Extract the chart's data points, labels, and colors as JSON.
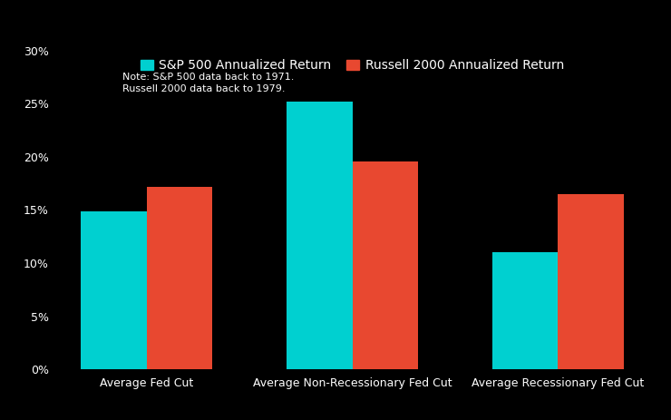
{
  "categories": [
    "Average Fed Cut",
    "Average Non-Recessionary Fed Cut",
    "Average Recessionary Fed Cut"
  ],
  "sp500_values": [
    14.9,
    25.2,
    11.0
  ],
  "russell_values": [
    17.2,
    19.6,
    16.5
  ],
  "sp500_color": "#00D0D0",
  "russell_color": "#E84830",
  "background_color": "#000000",
  "text_color": "#FFFFFF",
  "legend_sp500": "S&P 500 Annualized Return",
  "legend_russell": "Russell 2000 Annualized Return",
  "note_line1": "Note: S&P 500 data back to 1971.",
  "note_line2": "Russell 2000 data back to 1979.",
  "ylim": [
    0,
    30
  ],
  "yticks": [
    0,
    5,
    10,
    15,
    20,
    25,
    30
  ],
  "bar_width": 0.32,
  "tick_fontsize": 9,
  "note_fontsize": 8,
  "legend_fontsize": 10
}
